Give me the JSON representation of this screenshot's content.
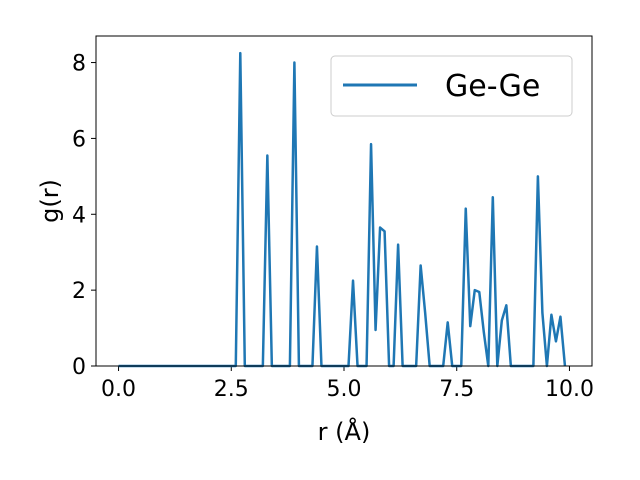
{
  "chart_data": {
    "type": "line",
    "xlabel": "r (Å)",
    "ylabel": "g(r)",
    "xlim": [
      -0.5,
      10.5
    ],
    "ylim": [
      0,
      8.7
    ],
    "x_ticks": [
      0.0,
      2.5,
      5.0,
      7.5,
      10.0
    ],
    "x_tick_labels": [
      "0.0",
      "2.5",
      "5.0",
      "7.5",
      "10.0"
    ],
    "y_ticks": [
      0,
      2,
      4,
      6,
      8
    ],
    "y_tick_labels": [
      "0",
      "2",
      "4",
      "6",
      "8"
    ],
    "grid": false,
    "legend_position": "top-right",
    "series": [
      {
        "name": "Ge-Ge",
        "color": "#1f77b4",
        "x": [
          0.0,
          2.6,
          2.7,
          2.8,
          2.9,
          3.2,
          3.3,
          3.4,
          3.8,
          3.9,
          4.0,
          4.3,
          4.4,
          4.5,
          5.1,
          5.2,
          5.3,
          5.5,
          5.6,
          5.7,
          5.8,
          5.9,
          6.0,
          6.1,
          6.2,
          6.3,
          6.6,
          6.7,
          6.8,
          6.9,
          7.0,
          7.2,
          7.3,
          7.4,
          7.6,
          7.7,
          7.8,
          7.9,
          8.0,
          8.1,
          8.2,
          8.3,
          8.4,
          8.5,
          8.6,
          8.7,
          8.8,
          9.2,
          9.3,
          9.4,
          9.5,
          9.6,
          9.7,
          9.8,
          9.9
        ],
        "y": [
          0,
          0,
          8.25,
          0,
          0,
          0,
          5.55,
          0,
          0,
          8.0,
          0,
          0,
          3.15,
          0,
          0,
          2.25,
          0,
          0,
          5.85,
          0.95,
          3.65,
          3.55,
          0,
          0,
          3.2,
          0,
          0,
          2.65,
          1.4,
          0,
          0,
          0,
          1.15,
          0,
          0,
          4.15,
          1.05,
          2.0,
          1.95,
          0.9,
          0,
          4.45,
          0,
          1.2,
          1.6,
          0,
          0,
          0,
          5.0,
          1.4,
          0,
          1.35,
          0.65,
          1.3,
          0
        ]
      }
    ]
  }
}
